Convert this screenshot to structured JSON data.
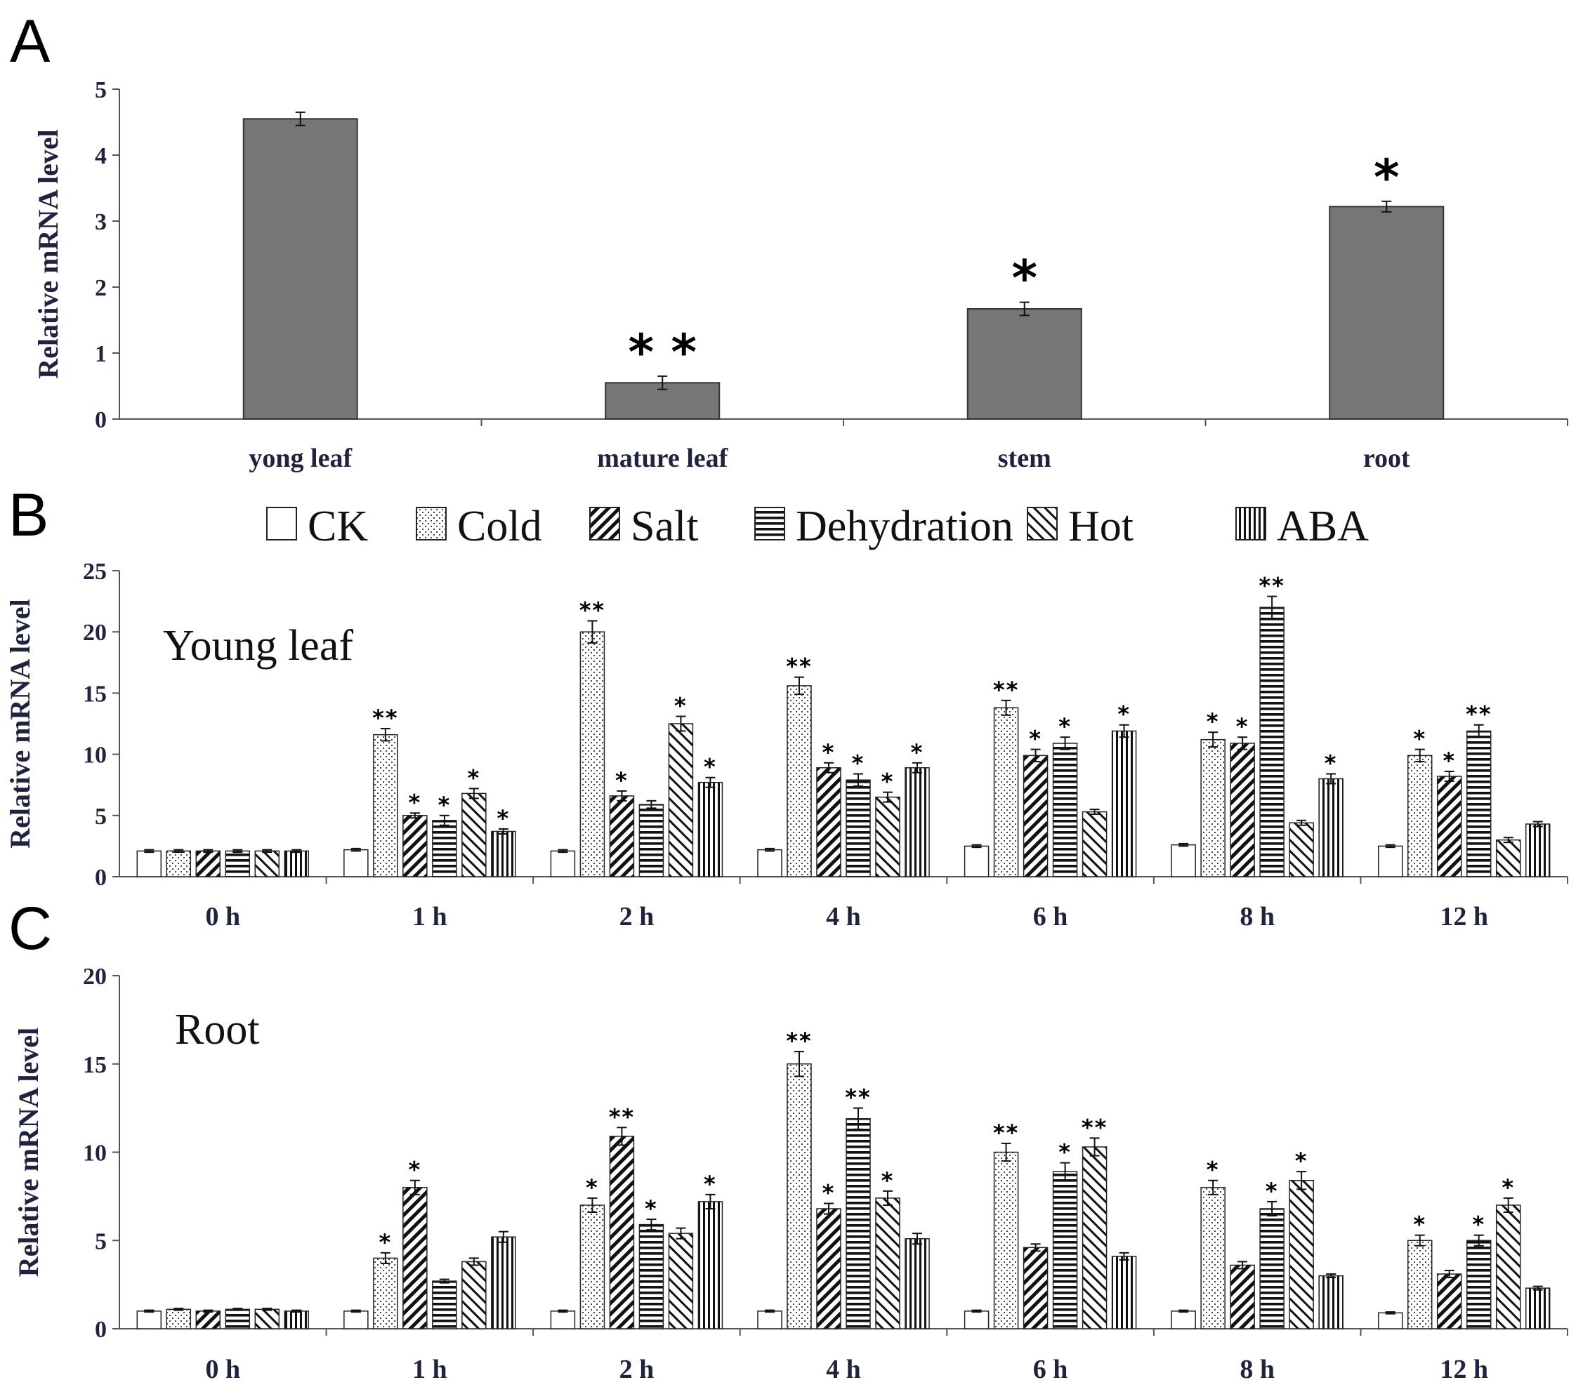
{
  "colors": {
    "bar_gray": "#767676",
    "axis": "#555555",
    "text": "#1f2340"
  },
  "legend": [
    {
      "key": "CK",
      "label": "CK"
    },
    {
      "key": "Cold",
      "label": "Cold"
    },
    {
      "key": "Salt",
      "label": "Salt"
    },
    {
      "key": "Dehydration",
      "label": "Dehydration"
    },
    {
      "key": "Hot",
      "label": "Hot"
    },
    {
      "key": "ABA",
      "label": "ABA"
    }
  ],
  "chart_data": [
    {
      "panel": "A",
      "type": "bar",
      "title": "",
      "ylabel": "Relative mRNA level",
      "ylim": [
        0,
        5
      ],
      "yticks": [
        0,
        1,
        2,
        3,
        4,
        5
      ],
      "categories": [
        "yong leaf",
        "mature leaf",
        "stem",
        "root"
      ],
      "values": [
        4.55,
        0.55,
        1.67,
        3.22
      ],
      "errors": [
        0.1,
        0.1,
        0.1,
        0.08
      ],
      "significance": [
        "",
        "* *",
        "*",
        "*"
      ]
    },
    {
      "panel": "B",
      "type": "bar",
      "title": "Young leaf",
      "ylabel": "Relative mRNA level",
      "ylim": [
        0,
        25
      ],
      "yticks": [
        0,
        5,
        10,
        15,
        20,
        25
      ],
      "categories": [
        "0 h",
        "1 h",
        "2 h",
        "4 h",
        "6 h",
        "8 h",
        "12 h"
      ],
      "series": [
        {
          "name": "CK",
          "values": [
            2.1,
            2.2,
            2.1,
            2.2,
            2.5,
            2.6,
            2.5
          ],
          "errors": [
            0.1,
            0.1,
            0.1,
            0.1,
            0.1,
            0.1,
            0.1
          ],
          "sig": [
            "",
            "",
            "",
            "",
            "",
            "",
            ""
          ]
        },
        {
          "name": "Cold",
          "values": [
            2.1,
            11.6,
            20.0,
            15.6,
            13.8,
            11.2,
            9.9
          ],
          "errors": [
            0.1,
            0.5,
            0.9,
            0.7,
            0.6,
            0.6,
            0.5
          ],
          "sig": [
            "",
            "**",
            "**",
            "**",
            "**",
            "*",
            "*"
          ]
        },
        {
          "name": "Salt",
          "values": [
            2.1,
            5.0,
            6.6,
            8.9,
            9.9,
            10.9,
            8.2
          ],
          "errors": [
            0.1,
            0.2,
            0.4,
            0.4,
            0.5,
            0.5,
            0.4
          ],
          "sig": [
            "",
            "*",
            "*",
            "*",
            "*",
            "*",
            "*"
          ]
        },
        {
          "name": "Dehydration",
          "values": [
            2.1,
            4.6,
            5.9,
            7.9,
            10.9,
            22.0,
            11.9
          ],
          "errors": [
            0.1,
            0.4,
            0.3,
            0.5,
            0.5,
            0.9,
            0.5
          ],
          "sig": [
            "",
            "*",
            "",
            "*",
            "*",
            "**",
            "**"
          ]
        },
        {
          "name": "Hot",
          "values": [
            2.1,
            6.8,
            12.5,
            6.5,
            5.3,
            4.4,
            3.0
          ],
          "errors": [
            0.1,
            0.4,
            0.6,
            0.4,
            0.2,
            0.2,
            0.2
          ],
          "sig": [
            "",
            "*",
            "*",
            "*",
            "",
            "",
            ""
          ]
        },
        {
          "name": "ABA",
          "values": [
            2.1,
            3.7,
            7.7,
            8.9,
            11.9,
            8.0,
            4.3
          ],
          "errors": [
            0.1,
            0.2,
            0.4,
            0.4,
            0.5,
            0.4,
            0.2
          ],
          "sig": [
            "",
            "*",
            "*",
            "*",
            "*",
            "*",
            ""
          ]
        }
      ]
    },
    {
      "panel": "C",
      "type": "bar",
      "title": "Root",
      "ylabel": "Relative mRNA level",
      "ylim": [
        0,
        20
      ],
      "yticks": [
        0,
        5,
        10,
        15,
        20
      ],
      "categories": [
        "0 h",
        "1 h",
        "2 h",
        "4 h",
        "6 h",
        "8 h",
        "12 h"
      ],
      "series": [
        {
          "name": "CK",
          "values": [
            1.0,
            1.0,
            1.0,
            1.0,
            1.0,
            1.0,
            0.9
          ],
          "errors": [
            0.05,
            0.05,
            0.05,
            0.05,
            0.05,
            0.05,
            0.05
          ],
          "sig": [
            "",
            "",
            "",
            "",
            "",
            "",
            ""
          ]
        },
        {
          "name": "Cold",
          "values": [
            1.1,
            4.0,
            7.0,
            15.0,
            10.0,
            8.0,
            5.0
          ],
          "errors": [
            0.05,
            0.3,
            0.4,
            0.7,
            0.5,
            0.4,
            0.3
          ],
          "sig": [
            "",
            "*",
            "*",
            "**",
            "**",
            "*",
            "*"
          ]
        },
        {
          "name": "Salt",
          "values": [
            1.0,
            8.0,
            10.9,
            6.8,
            4.6,
            3.6,
            3.1
          ],
          "errors": [
            0.05,
            0.4,
            0.5,
            0.3,
            0.2,
            0.2,
            0.2
          ],
          "sig": [
            "",
            "*",
            "**",
            "*",
            "",
            "",
            ""
          ]
        },
        {
          "name": "Dehydration",
          "values": [
            1.1,
            2.7,
            5.9,
            11.9,
            8.9,
            6.8,
            5.0
          ],
          "errors": [
            0.05,
            0.1,
            0.3,
            0.6,
            0.5,
            0.4,
            0.3
          ],
          "sig": [
            "",
            "",
            "*",
            "**",
            "*",
            "*",
            "*"
          ]
        },
        {
          "name": "Hot",
          "values": [
            1.1,
            3.8,
            5.4,
            7.4,
            10.3,
            8.4,
            7.0
          ],
          "errors": [
            0.05,
            0.2,
            0.3,
            0.4,
            0.5,
            0.5,
            0.4
          ],
          "sig": [
            "",
            "",
            "",
            "*",
            "**",
            "*",
            "*"
          ]
        },
        {
          "name": "ABA",
          "values": [
            1.0,
            5.2,
            7.2,
            5.1,
            4.1,
            3.0,
            2.3
          ],
          "errors": [
            0.05,
            0.3,
            0.4,
            0.3,
            0.2,
            0.1,
            0.1
          ],
          "sig": [
            "",
            "",
            "*",
            "",
            "",
            "",
            ""
          ]
        }
      ]
    }
  ]
}
